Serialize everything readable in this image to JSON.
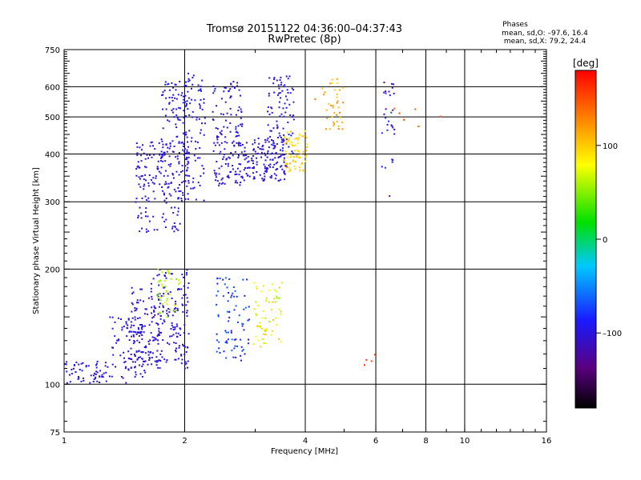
{
  "header": {
    "title": "Tromsø 20151122 04:36:00–04:37:43",
    "subtitle": "RwPretec (8p)",
    "phases_title": "Phases",
    "phases_o": "mean, sd,O: –97.6, 16.4",
    "phases_x": "mean, sd,X: 79.2, 24.4"
  },
  "chart_data": {
    "type": "scatter",
    "xlabel": "Frequency [MHz]",
    "ylabel": "Stationary phase Virtual Height [km]",
    "x_scale": "log",
    "y_scale": "log",
    "xlim": [
      1,
      16
    ],
    "ylim": [
      75,
      750
    ],
    "x_ticks": [
      1,
      2,
      4,
      6,
      8,
      10,
      16
    ],
    "y_ticks": [
      75,
      100,
      200,
      300,
      400,
      500,
      600,
      750
    ],
    "grid_x": [
      2,
      4,
      6,
      8,
      10
    ],
    "grid_y": [
      100,
      200,
      300,
      400,
      500,
      600
    ],
    "colorbar": {
      "label": "[deg]",
      "range": [
        -180,
        180
      ],
      "ticks": [
        {
          "value": 100,
          "label": "100"
        },
        {
          "value": 0,
          "label": "0"
        },
        {
          "value": -100,
          "label": "–100"
        }
      ]
    },
    "clusters": [
      {
        "fx": [
          1.0,
          1.3
        ],
        "hy": [
          100,
          115
        ],
        "phase": -95,
        "spread": 10,
        "count": 60
      },
      {
        "fx": [
          1.3,
          1.6
        ],
        "hy": [
          100,
          150
        ],
        "phase": -95,
        "spread": 10,
        "count": 80
      },
      {
        "fx": [
          1.45,
          1.75
        ],
        "hy": [
          110,
          180
        ],
        "phase": -100,
        "spread": 10,
        "count": 120
      },
      {
        "fx": [
          1.65,
          2.05
        ],
        "hy": [
          110,
          200
        ],
        "phase": -100,
        "spread": 10,
        "count": 150
      },
      {
        "fx": [
          1.7,
          1.95
        ],
        "hy": [
          150,
          200
        ],
        "phase": 60,
        "spread": 12,
        "count": 40
      },
      {
        "fx": [
          1.5,
          2.0
        ],
        "hy": [
          250,
          300
        ],
        "phase": -100,
        "spread": 10,
        "count": 40
      },
      {
        "fx": [
          1.5,
          2.05
        ],
        "hy": [
          300,
          430
        ],
        "phase": -100,
        "spread": 10,
        "count": 160
      },
      {
        "fx": [
          1.75,
          2.1
        ],
        "hy": [
          380,
          620
        ],
        "phase": -95,
        "spread": 10,
        "count": 100
      },
      {
        "fx": [
          2.0,
          2.25
        ],
        "hy": [
          300,
          650
        ],
        "phase": -95,
        "spread": 10,
        "count": 70
      },
      {
        "fx": [
          2.35,
          2.8
        ],
        "hy": [
          330,
          620
        ],
        "phase": -100,
        "spread": 10,
        "count": 150
      },
      {
        "fx": [
          2.8,
          3.6
        ],
        "hy": [
          340,
          440
        ],
        "phase": -100,
        "spread": 10,
        "count": 140
      },
      {
        "fx": [
          3.2,
          3.75
        ],
        "hy": [
          400,
          640
        ],
        "phase": -95,
        "spread": 10,
        "count": 90
      },
      {
        "fx": [
          3.55,
          4.05
        ],
        "hy": [
          360,
          460
        ],
        "phase": 95,
        "spread": 15,
        "count": 70
      },
      {
        "fx": [
          4.2,
          5.0
        ],
        "hy": [
          460,
          630
        ],
        "phase": 110,
        "spread": 20,
        "count": 40
      },
      {
        "fx": [
          2.4,
          2.9
        ],
        "hy": [
          115,
          190
        ],
        "phase": -80,
        "spread": 25,
        "count": 80
      },
      {
        "fx": [
          2.9,
          3.5
        ],
        "hy": [
          125,
          185
        ],
        "phase": 80,
        "spread": 25,
        "count": 60
      },
      {
        "fx": [
          6.2,
          6.7
        ],
        "hy": [
          300,
          650
        ],
        "phase": -100,
        "spread": 30,
        "count": 30
      },
      {
        "fx": [
          6.5,
          9.5
        ],
        "hy": [
          470,
          560
        ],
        "phase": 150,
        "spread": 20,
        "count": 6
      },
      {
        "fx": [
          5.5,
          6.0
        ],
        "hy": [
          110,
          120
        ],
        "phase": 160,
        "spread": 10,
        "count": 4
      }
    ]
  }
}
